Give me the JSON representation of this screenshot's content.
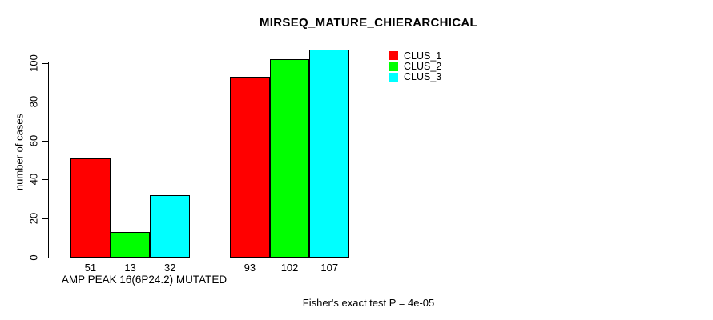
{
  "chart_data": {
    "type": "bar",
    "title": "MIRSEQ_MATURE_CHIERARCHICAL",
    "ylabel": "number of cases",
    "xlabel": "AMP PEAK 16(6P24.2) MUTATED",
    "yticks": [
      0,
      20,
      40,
      60,
      80,
      100
    ],
    "ylim": [
      0,
      107
    ],
    "grid": false,
    "legend_position": "top-right-inside",
    "categories": [
      "AMP PEAK 16(6P24.2) MUTATED",
      ""
    ],
    "series": [
      {
        "name": "CLUS_1",
        "color": "#ff0000",
        "values": [
          51,
          93
        ]
      },
      {
        "name": "CLUS_2",
        "color": "#00ff00",
        "values": [
          13,
          102
        ]
      },
      {
        "name": "CLUS_3",
        "color": "#00ffff",
        "values": [
          32,
          107
        ]
      }
    ],
    "annotation": "Fisher's exact test P = 4e-05"
  }
}
